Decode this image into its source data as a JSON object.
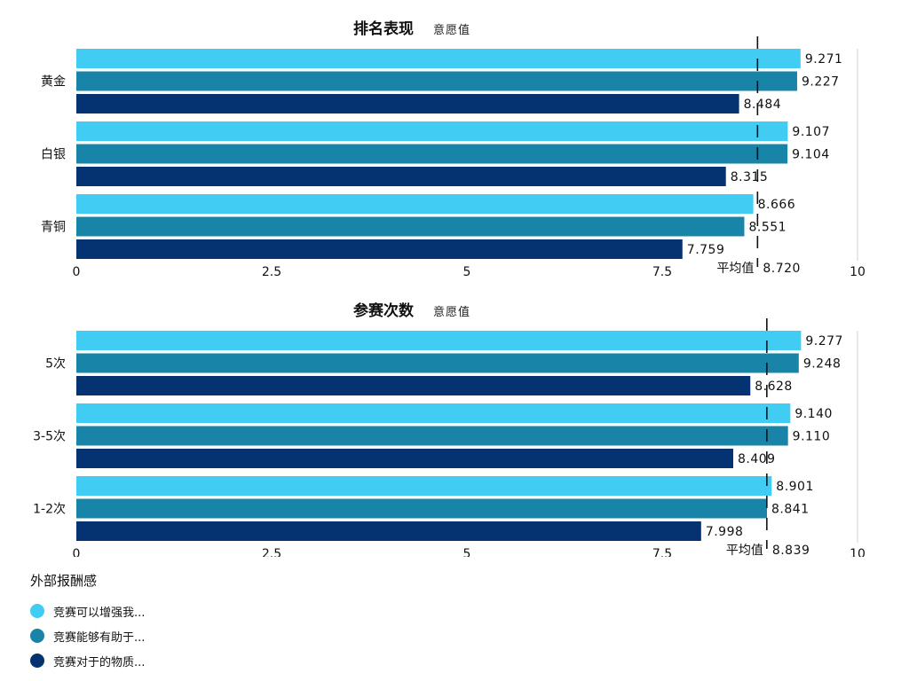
{
  "chart_data": [
    {
      "type": "bar",
      "orientation": "horizontal",
      "title": "排名表现",
      "subtitle": "意愿值",
      "categories": [
        "黄金",
        "白银",
        "青铜"
      ],
      "series": [
        {
          "name": "竞赛可以增强我...",
          "values": [
            9.271,
            9.107,
            8.666
          ]
        },
        {
          "name": "竞赛能够有助于...",
          "values": [
            9.227,
            9.104,
            8.551
          ]
        },
        {
          "name": "竞赛对于的物质...",
          "values": [
            8.484,
            8.315,
            7.759
          ]
        }
      ],
      "value_labels": [
        [
          "9.271",
          "9.227",
          "8.484"
        ],
        [
          "9.107",
          "9.104",
          "8.315"
        ],
        [
          "8.666",
          "8.551",
          "7.759"
        ]
      ],
      "reference_line": {
        "label": "平均值",
        "value": 8.72,
        "value_text": "8.720"
      },
      "xlim": [
        0,
        10
      ],
      "xticks": [
        "0",
        "2.5",
        "5",
        "7.5",
        "10"
      ],
      "grid": false
    },
    {
      "type": "bar",
      "orientation": "horizontal",
      "title": "参赛次数",
      "subtitle": "意愿值",
      "categories": [
        "5次",
        "3-5次",
        "1-2次"
      ],
      "series": [
        {
          "name": "竞赛可以增强我...",
          "values": [
            9.277,
            9.14,
            8.901
          ]
        },
        {
          "name": "竞赛能够有助于...",
          "values": [
            9.248,
            9.11,
            8.841
          ]
        },
        {
          "name": "竞赛对于的物质...",
          "values": [
            8.628,
            8.409,
            7.998
          ]
        }
      ],
      "value_labels": [
        [
          "9.277",
          "9.248",
          "8.628"
        ],
        [
          "9.140",
          "9.110",
          "8.409"
        ],
        [
          "8.901",
          "8.841",
          "7.998"
        ]
      ],
      "reference_line": {
        "label": "平均值",
        "value": 8.839,
        "value_text": "8.839"
      },
      "xlim": [
        0,
        10
      ],
      "xticks": [
        "0",
        "2.5",
        "5",
        "7.5",
        "10"
      ],
      "grid": false
    }
  ],
  "legend": {
    "title": "外部报酬感",
    "items": [
      {
        "label": "竞赛可以增强我...",
        "color": "#41ccf4"
      },
      {
        "label": "竞赛能够有助于...",
        "color": "#1884a8"
      },
      {
        "label": "竞赛对于的物质...",
        "color": "#053371"
      }
    ]
  }
}
